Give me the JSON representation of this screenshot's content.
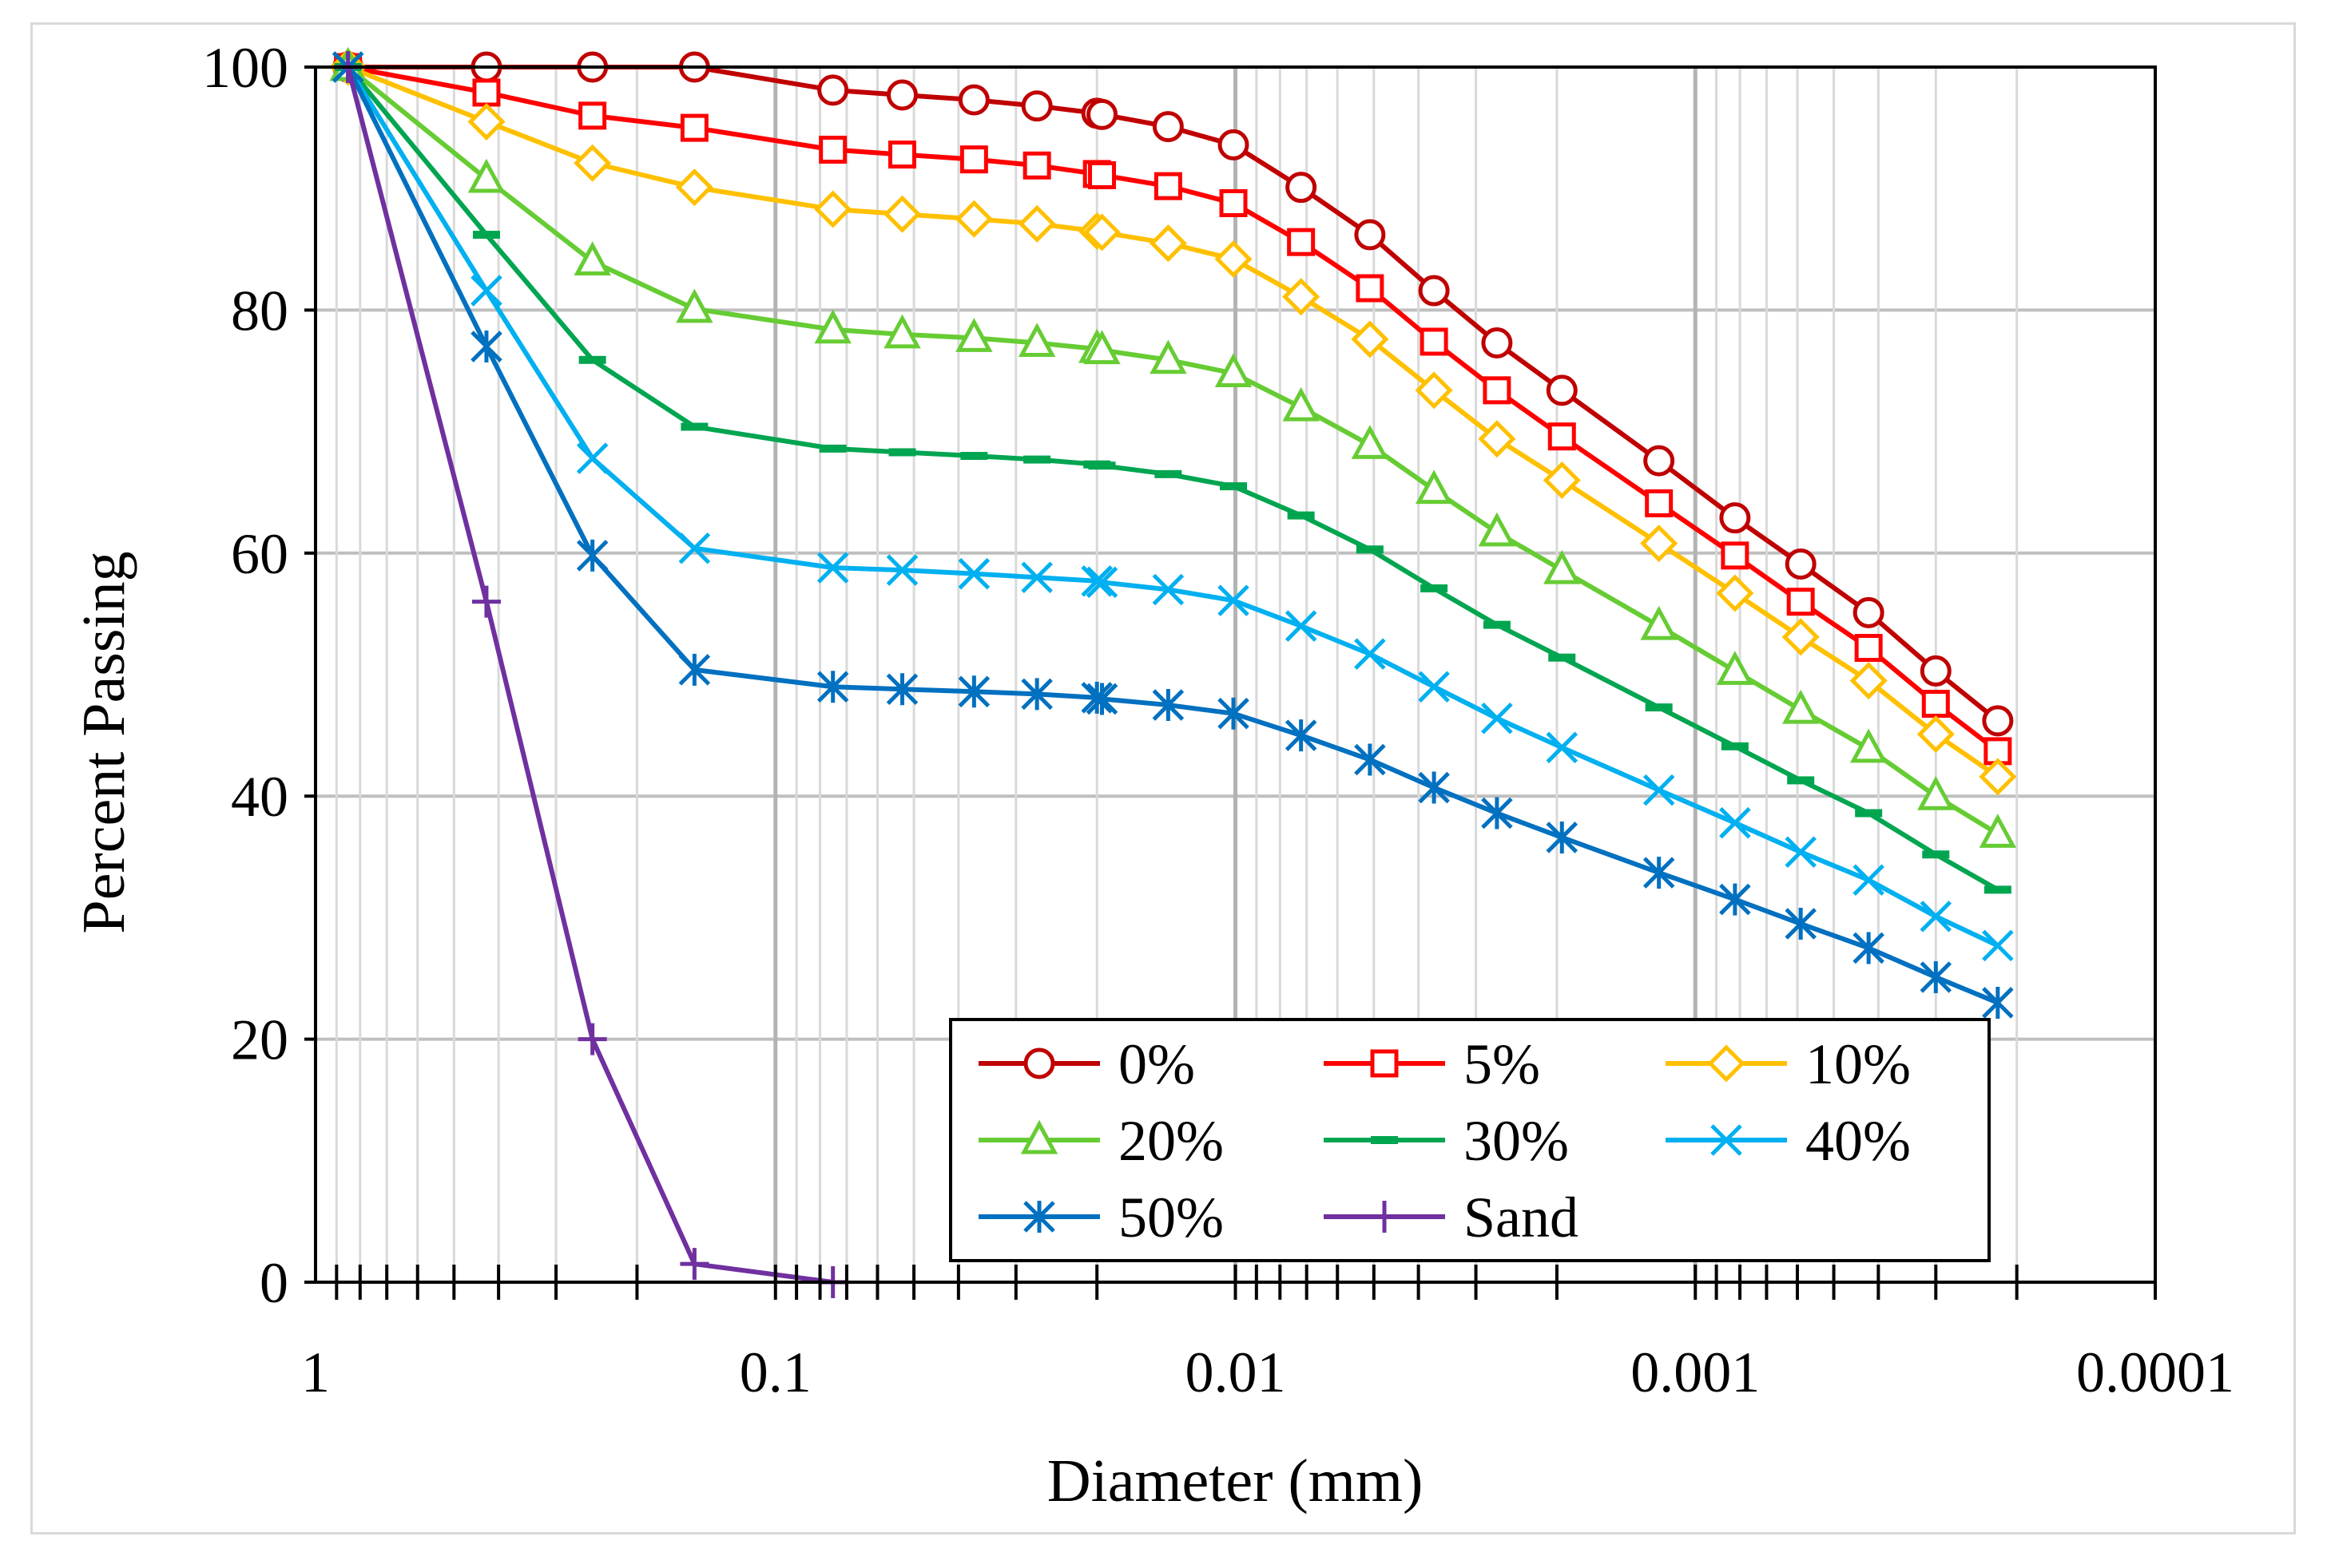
{
  "chart_data": {
    "type": "line",
    "xscale": "log",
    "x_reversed": true,
    "xlim": [
      1,
      0.0001
    ],
    "ylim": [
      0,
      100
    ],
    "xlabel": "Diameter (mm)",
    "ylabel": "Percent Passing",
    "xticks": [
      1,
      0.1,
      0.01,
      0.001,
      0.0001
    ],
    "xtick_labels": [
      "1",
      "0.1",
      "0.01",
      "0.001",
      "0.0001"
    ],
    "yticks": [
      0,
      20,
      40,
      60,
      80,
      100
    ],
    "ytick_labels": [
      "0",
      "20",
      "40",
      "60",
      "80",
      "100"
    ],
    "grid": true,
    "legend_position": "bottom-right",
    "x": [
      0.85,
      0.425,
      0.25,
      0.15,
      0.075,
      0.053,
      0.037,
      0.027,
      0.02,
      0.0195,
      0.014,
      0.0101,
      0.0072,
      0.0051,
      0.0037,
      0.0027,
      0.00195,
      0.0012,
      0.00082,
      0.00059,
      0.00042,
      0.0003,
      0.00022
    ],
    "series": [
      {
        "name": "0%",
        "color": "#c00000",
        "marker": "circle",
        "values": [
          100,
          100,
          100,
          100,
          98.1,
          97.7,
          97.3,
          96.8,
          96.2,
          96.1,
          95.1,
          93.6,
          90.1,
          86.2,
          81.6,
          77.3,
          73.4,
          67.6,
          62.9,
          59.1,
          55.1,
          50.3,
          46.2
        ]
      },
      {
        "name": "5%",
        "color": "#ff0000",
        "marker": "square",
        "values": [
          100,
          97.9,
          96.0,
          95.0,
          93.2,
          92.8,
          92.4,
          91.9,
          91.2,
          91.1,
          90.2,
          88.8,
          85.6,
          81.8,
          77.4,
          73.4,
          69.6,
          64.1,
          59.8,
          56.0,
          52.2,
          47.6,
          43.7
        ]
      },
      {
        "name": "10%",
        "color": "#ffc000",
        "marker": "diamond",
        "values": [
          100,
          95.5,
          92.1,
          90.1,
          88.3,
          87.9,
          87.5,
          87.1,
          86.5,
          86.4,
          85.5,
          84.2,
          81.1,
          77.6,
          73.4,
          69.4,
          66.0,
          60.8,
          56.7,
          53.1,
          49.5,
          45.1,
          41.6
        ]
      },
      {
        "name": "20%",
        "color": "#66cc33",
        "marker": "triangle",
        "values": [
          100,
          90.8,
          84.0,
          80.1,
          78.4,
          78.0,
          77.7,
          77.3,
          76.8,
          76.7,
          75.9,
          74.8,
          72.0,
          68.9,
          65.2,
          61.7,
          58.6,
          54.0,
          50.3,
          47.1,
          43.9,
          40.0,
          36.9
        ]
      },
      {
        "name": "30%",
        "color": "#00a550",
        "marker": "dash",
        "values": [
          100,
          86.2,
          75.9,
          70.4,
          68.6,
          68.3,
          68.0,
          67.7,
          67.3,
          67.2,
          66.5,
          65.5,
          63.1,
          60.3,
          57.1,
          54.1,
          51.4,
          47.3,
          44.1,
          41.3,
          38.6,
          35.2,
          32.3
        ]
      },
      {
        "name": "40%",
        "color": "#00b0f0",
        "marker": "x",
        "values": [
          100,
          81.6,
          67.8,
          60.4,
          58.8,
          58.6,
          58.3,
          58.0,
          57.7,
          57.6,
          57.0,
          56.1,
          54.0,
          51.7,
          49.0,
          46.4,
          44.0,
          40.5,
          37.8,
          35.4,
          33.1,
          30.1,
          27.7
        ]
      },
      {
        "name": "50%",
        "color": "#0070c0",
        "marker": "asterisk",
        "values": [
          100,
          77.0,
          59.8,
          50.4,
          49.0,
          48.8,
          48.6,
          48.4,
          48.1,
          48.0,
          47.5,
          46.8,
          45.0,
          43.0,
          40.7,
          38.6,
          36.6,
          33.7,
          31.5,
          29.5,
          27.5,
          25.1,
          23.0
        ]
      },
      {
        "name": "Sand",
        "color": "#7030a0",
        "marker": "plus",
        "x": [
          0.85,
          0.425,
          0.25,
          0.15,
          0.075
        ],
        "values": [
          100,
          56.0,
          20.0,
          1.5,
          0
        ]
      }
    ]
  }
}
